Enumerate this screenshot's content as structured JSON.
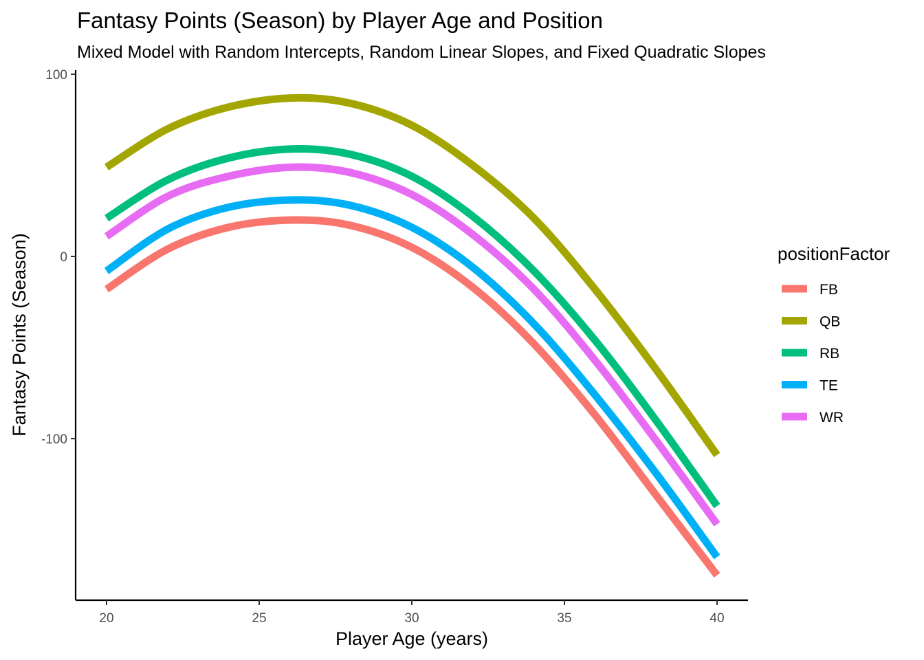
{
  "chart_data": {
    "type": "line",
    "title": "Fantasy Points (Season) by Player Age and Position",
    "subtitle": "Mixed Model with Random Intercepts, Random Linear Slopes, and Fixed Quadratic Slopes",
    "xlabel": "Player Age (years)",
    "ylabel": "Fantasy Points (Season)",
    "xlim": [
      19,
      41
    ],
    "ylim": [
      -188,
      100
    ],
    "x_ticks": [
      20,
      25,
      30,
      35,
      40
    ],
    "x_tick_labels": [
      "20",
      "25",
      "30",
      "35",
      "40"
    ],
    "y_ticks": [
      100,
      0,
      -100
    ],
    "y_tick_labels": [
      "100",
      "0",
      "-100"
    ],
    "grid": false,
    "legend": {
      "title": "positionFactor",
      "position": "right"
    },
    "x": [
      20,
      22,
      24,
      26.1,
      28,
      30,
      32,
      34,
      36,
      38,
      40
    ],
    "series": [
      {
        "name": "FB",
        "color": "#F8766D",
        "values": [
          -18,
          4,
          16,
          20,
          17,
          5,
          -17,
          -48,
          -87,
          -131,
          -175
        ]
      },
      {
        "name": "QB",
        "color": "#A3A500",
        "values": [
          49,
          70,
          82,
          87,
          84,
          72,
          50,
          21,
          -18,
          -62,
          -109
        ]
      },
      {
        "name": "RB",
        "color": "#00BF7D",
        "values": [
          21,
          42,
          54,
          59,
          56,
          44,
          22,
          -8,
          -46,
          -90,
          -137
        ]
      },
      {
        "name": "TE",
        "color": "#00B0F6",
        "values": [
          -8,
          15,
          27,
          31,
          28,
          16,
          -6,
          -37,
          -76,
          -119,
          -165
        ]
      },
      {
        "name": "WR",
        "color": "#E76BF3",
        "values": [
          11,
          33,
          44,
          49,
          46,
          34,
          12,
          -18,
          -57,
          -101,
          -147
        ]
      }
    ]
  }
}
